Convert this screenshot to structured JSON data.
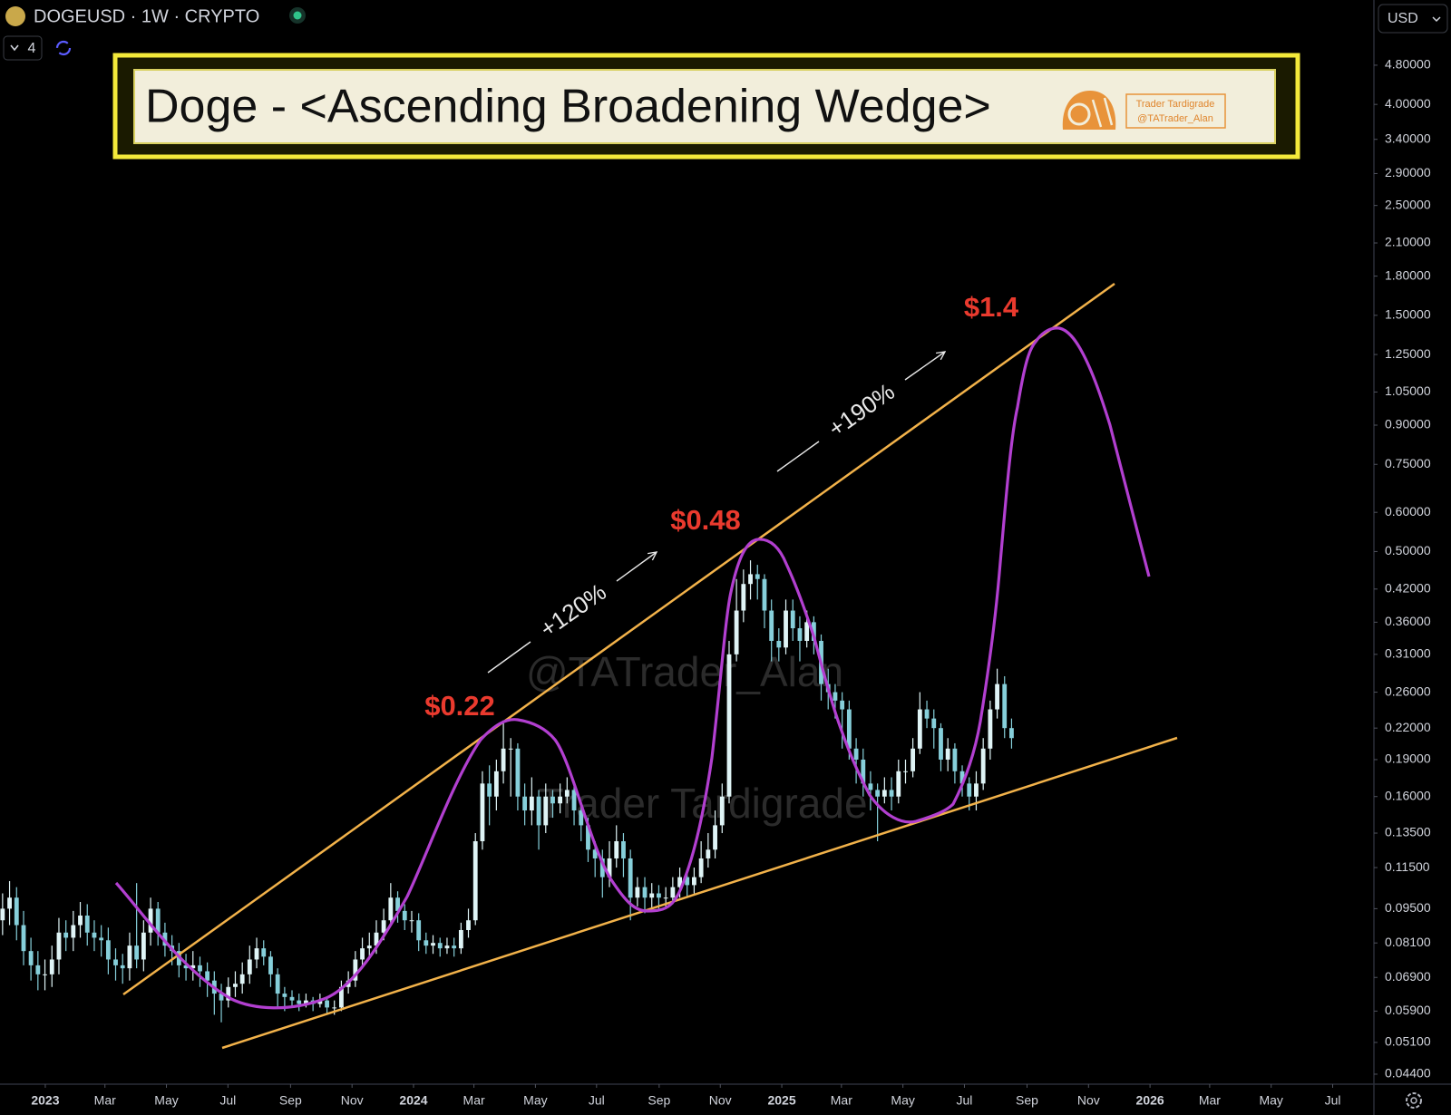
{
  "header": {
    "symbol": "DOGEUSD · 1W · CRYPTO",
    "indicators": "4",
    "currency": "USD"
  },
  "chart_data": {
    "type": "candlestick",
    "title": "Doge - <Ascending Broadening Wedge>",
    "x": [
      2022.884,
      2022.903,
      2022.922,
      2022.941,
      2022.961,
      2022.98,
      2022.999,
      2023.018,
      2023.037,
      2023.056,
      2023.076,
      2023.095,
      2023.114,
      2023.133,
      2023.152,
      2023.171,
      2023.191,
      2023.21,
      2023.229,
      2023.248,
      2023.267,
      2023.286,
      2023.306,
      2023.325,
      2023.344,
      2023.363,
      2023.382,
      2023.401,
      2023.42,
      2023.44,
      2023.459,
      2023.478,
      2023.497,
      2023.516,
      2023.535,
      2023.555,
      2023.574,
      2023.593,
      2023.612,
      2023.631,
      2023.65,
      2023.67,
      2023.689,
      2023.708,
      2023.727,
      2023.746,
      2023.765,
      2023.785,
      2023.804,
      2023.823,
      2023.842,
      2023.861,
      2023.88,
      2023.899,
      2023.919,
      2023.938,
      2023.957,
      2023.976,
      2023.995,
      2024.014,
      2024.034,
      2024.053,
      2024.072,
      2024.091,
      2024.11,
      2024.129,
      2024.149,
      2024.168,
      2024.187,
      2024.206,
      2024.225,
      2024.244,
      2024.264,
      2024.283,
      2024.302,
      2024.321,
      2024.34,
      2024.359,
      2024.378,
      2024.398,
      2024.417,
      2024.436,
      2024.455,
      2024.474,
      2024.493,
      2024.513,
      2024.532,
      2024.551,
      2024.57,
      2024.589,
      2024.608,
      2024.628,
      2024.647,
      2024.666,
      2024.685,
      2024.704,
      2024.723,
      2024.743,
      2024.762,
      2024.781,
      2024.8,
      2024.819,
      2024.838,
      2024.857,
      2024.877,
      2024.896,
      2024.915,
      2024.934,
      2024.953,
      2024.972,
      2024.992,
      2025.011,
      2025.03,
      2025.049,
      2025.068,
      2025.087,
      2025.107,
      2025.126,
      2025.145,
      2025.164,
      2025.183,
      2025.202,
      2025.221,
      2025.241,
      2025.26,
      2025.279,
      2025.298,
      2025.317,
      2025.336,
      2025.356,
      2025.375,
      2025.394,
      2025.413,
      2025.432,
      2025.451,
      2025.47,
      2025.49,
      2025.509,
      2025.528,
      2025.547,
      2025.566,
      2025.585,
      2025.605,
      2025.624
    ],
    "open": [
      0.09,
      0.095,
      0.1,
      0.088,
      0.078,
      0.073,
      0.07,
      0.07,
      0.075,
      0.085,
      0.083,
      0.088,
      0.092,
      0.085,
      0.083,
      0.082,
      0.075,
      0.073,
      0.072,
      0.08,
      0.075,
      0.085,
      0.095,
      0.085,
      0.08,
      0.078,
      0.073,
      0.072,
      0.073,
      0.071,
      0.068,
      0.064,
      0.062,
      0.066,
      0.067,
      0.07,
      0.075,
      0.079,
      0.076,
      0.07,
      0.064,
      0.063,
      0.062,
      0.061,
      0.062,
      0.061,
      0.062,
      0.06,
      0.06,
      0.066,
      0.068,
      0.075,
      0.079,
      0.08,
      0.085,
      0.09,
      0.1,
      0.094,
      0.09,
      0.09,
      0.082,
      0.08,
      0.081,
      0.079,
      0.08,
      0.079,
      0.086,
      0.09,
      0.13,
      0.17,
      0.16,
      0.18,
      0.2,
      0.2,
      0.16,
      0.15,
      0.16,
      0.14,
      0.16,
      0.155,
      0.16,
      0.165,
      0.15,
      0.14,
      0.125,
      0.12,
      0.11,
      0.12,
      0.13,
      0.12,
      0.1,
      0.105,
      0.1,
      0.102,
      0.1,
      0.1,
      0.105,
      0.11,
      0.106,
      0.11,
      0.12,
      0.125,
      0.14,
      0.16,
      0.31,
      0.38,
      0.43,
      0.45,
      0.44,
      0.38,
      0.33,
      0.32,
      0.38,
      0.35,
      0.33,
      0.36,
      0.33,
      0.27,
      0.26,
      0.25,
      0.24,
      0.2,
      0.19,
      0.17,
      0.165,
      0.16,
      0.165,
      0.16,
      0.18,
      0.18,
      0.2,
      0.24,
      0.23,
      0.22,
      0.19,
      0.2,
      0.18,
      0.17,
      0.16,
      0.17,
      0.2,
      0.24,
      0.27,
      0.22
    ],
    "high": [
      0.102,
      0.108,
      0.105,
      0.094,
      0.083,
      0.078,
      0.075,
      0.08,
      0.091,
      0.09,
      0.094,
      0.098,
      0.097,
      0.09,
      0.088,
      0.087,
      0.079,
      0.077,
      0.085,
      0.107,
      0.09,
      0.1,
      0.098,
      0.089,
      0.084,
      0.081,
      0.077,
      0.078,
      0.076,
      0.074,
      0.071,
      0.067,
      0.069,
      0.071,
      0.074,
      0.08,
      0.083,
      0.082,
      0.078,
      0.072,
      0.066,
      0.065,
      0.064,
      0.064,
      0.063,
      0.064,
      0.063,
      0.062,
      0.068,
      0.071,
      0.078,
      0.083,
      0.085,
      0.09,
      0.095,
      0.107,
      0.103,
      0.097,
      0.094,
      0.093,
      0.085,
      0.084,
      0.083,
      0.083,
      0.083,
      0.089,
      0.095,
      0.135,
      0.18,
      0.185,
      0.19,
      0.228,
      0.21,
      0.205,
      0.17,
      0.175,
      0.165,
      0.17,
      0.165,
      0.17,
      0.175,
      0.17,
      0.155,
      0.145,
      0.13,
      0.125,
      0.13,
      0.14,
      0.135,
      0.125,
      0.11,
      0.11,
      0.107,
      0.106,
      0.105,
      0.11,
      0.115,
      0.113,
      0.115,
      0.13,
      0.135,
      0.15,
      0.17,
      0.33,
      0.44,
      0.46,
      0.48,
      0.47,
      0.45,
      0.4,
      0.35,
      0.4,
      0.4,
      0.37,
      0.38,
      0.37,
      0.34,
      0.29,
      0.27,
      0.26,
      0.25,
      0.21,
      0.2,
      0.18,
      0.17,
      0.175,
      0.175,
      0.19,
      0.19,
      0.21,
      0.26,
      0.25,
      0.24,
      0.225,
      0.21,
      0.205,
      0.185,
      0.175,
      0.18,
      0.21,
      0.25,
      0.29,
      0.28,
      0.23
    ],
    "low": [
      0.084,
      0.088,
      0.082,
      0.073,
      0.068,
      0.065,
      0.065,
      0.066,
      0.07,
      0.078,
      0.078,
      0.083,
      0.08,
      0.078,
      0.076,
      0.07,
      0.068,
      0.067,
      0.068,
      0.072,
      0.071,
      0.08,
      0.08,
      0.076,
      0.073,
      0.069,
      0.068,
      0.068,
      0.066,
      0.063,
      0.058,
      0.056,
      0.06,
      0.063,
      0.064,
      0.067,
      0.072,
      0.073,
      0.066,
      0.06,
      0.059,
      0.06,
      0.059,
      0.06,
      0.059,
      0.06,
      0.058,
      0.058,
      0.059,
      0.064,
      0.066,
      0.072,
      0.075,
      0.077,
      0.082,
      0.088,
      0.089,
      0.086,
      0.085,
      0.078,
      0.077,
      0.077,
      0.076,
      0.077,
      0.076,
      0.077,
      0.083,
      0.088,
      0.125,
      0.14,
      0.15,
      0.17,
      0.16,
      0.15,
      0.14,
      0.14,
      0.125,
      0.135,
      0.145,
      0.148,
      0.155,
      0.14,
      0.13,
      0.118,
      0.11,
      0.1,
      0.105,
      0.115,
      0.11,
      0.09,
      0.096,
      0.093,
      0.095,
      0.095,
      0.095,
      0.097,
      0.1,
      0.1,
      0.102,
      0.107,
      0.115,
      0.12,
      0.135,
      0.155,
      0.3,
      0.36,
      0.4,
      0.4,
      0.35,
      0.3,
      0.3,
      0.31,
      0.33,
      0.3,
      0.32,
      0.31,
      0.25,
      0.24,
      0.23,
      0.2,
      0.19,
      0.17,
      0.16,
      0.15,
      0.13,
      0.155,
      0.15,
      0.155,
      0.17,
      0.175,
      0.195,
      0.22,
      0.2,
      0.18,
      0.18,
      0.17,
      0.16,
      0.15,
      0.15,
      0.165,
      0.19,
      0.23,
      0.21,
      0.2
    ],
    "close": [
      0.095,
      0.1,
      0.088,
      0.078,
      0.073,
      0.07,
      0.07,
      0.075,
      0.085,
      0.083,
      0.088,
      0.092,
      0.085,
      0.083,
      0.082,
      0.075,
      0.073,
      0.072,
      0.08,
      0.075,
      0.085,
      0.095,
      0.085,
      0.08,
      0.078,
      0.073,
      0.072,
      0.073,
      0.071,
      0.068,
      0.064,
      0.062,
      0.066,
      0.067,
      0.07,
      0.075,
      0.079,
      0.076,
      0.07,
      0.064,
      0.063,
      0.062,
      0.061,
      0.062,
      0.061,
      0.062,
      0.06,
      0.06,
      0.066,
      0.068,
      0.075,
      0.079,
      0.08,
      0.085,
      0.09,
      0.1,
      0.094,
      0.09,
      0.09,
      0.082,
      0.08,
      0.081,
      0.079,
      0.08,
      0.079,
      0.086,
      0.09,
      0.13,
      0.17,
      0.16,
      0.18,
      0.2,
      0.2,
      0.16,
      0.15,
      0.16,
      0.14,
      0.16,
      0.155,
      0.16,
      0.165,
      0.15,
      0.14,
      0.125,
      0.12,
      0.11,
      0.12,
      0.13,
      0.12,
      0.1,
      0.105,
      0.1,
      0.102,
      0.1,
      0.1,
      0.105,
      0.11,
      0.106,
      0.11,
      0.12,
      0.125,
      0.14,
      0.16,
      0.31,
      0.38,
      0.43,
      0.45,
      0.44,
      0.38,
      0.33,
      0.32,
      0.38,
      0.35,
      0.33,
      0.36,
      0.33,
      0.27,
      0.26,
      0.25,
      0.24,
      0.2,
      0.19,
      0.17,
      0.165,
      0.16,
      0.165,
      0.16,
      0.18,
      0.18,
      0.2,
      0.24,
      0.23,
      0.22,
      0.19,
      0.2,
      0.18,
      0.17,
      0.16,
      0.17,
      0.2,
      0.24,
      0.27,
      0.22,
      0.21
    ],
    "up_color": "#dff4f6",
    "down_color": "#86cfda",
    "xlim": [
      2022.877,
      2026.608
    ],
    "ylim": [
      0.042,
      6.5
    ],
    "log_y": true,
    "grid": false,
    "xticks": [
      2023,
      {
        "value": 2023.162,
        "label": "Mar"
      },
      {
        "value": 2023.329,
        "label": "May"
      },
      {
        "value": 2023.496,
        "label": "Jul"
      },
      {
        "value": 2023.666,
        "label": "Sep"
      },
      {
        "value": 2023.833,
        "label": "Nov"
      },
      2024,
      {
        "value": 2024.164,
        "label": "Mar"
      },
      {
        "value": 2024.331,
        "label": "May"
      },
      {
        "value": 2024.497,
        "label": "Jul"
      },
      {
        "value": 2024.667,
        "label": "Sep"
      },
      {
        "value": 2024.833,
        "label": "Nov"
      },
      2025,
      {
        "value": 2025.162,
        "label": "Mar"
      },
      {
        "value": 2025.329,
        "label": "May"
      },
      {
        "value": 2025.496,
        "label": "Jul"
      },
      {
        "value": 2025.666,
        "label": "Sep"
      },
      {
        "value": 2025.833,
        "label": "Nov"
      },
      2026,
      {
        "value": 2026.162,
        "label": "Mar"
      },
      {
        "value": 2026.329,
        "label": "May"
      },
      {
        "value": 2026.496,
        "label": "Jul"
      }
    ],
    "yticks": [
      {
        "value": 4.8,
        "label": "4.80000"
      },
      {
        "value": 4.0,
        "label": "4.00000"
      },
      {
        "value": 3.4,
        "label": "3.40000"
      },
      {
        "value": 2.9,
        "label": "2.90000"
      },
      {
        "value": 2.5,
        "label": "2.50000"
      },
      {
        "value": 2.1,
        "label": "2.10000"
      },
      {
        "value": 1.8,
        "label": "1.80000"
      },
      {
        "value": 1.5,
        "label": "1.50000"
      },
      {
        "value": 1.25,
        "label": "1.25000"
      },
      {
        "value": 1.05,
        "label": "1.05000"
      },
      {
        "value": 0.9,
        "label": "0.90000"
      },
      {
        "value": 0.75,
        "label": "0.75000"
      },
      {
        "value": 0.6,
        "label": "0.60000"
      },
      {
        "value": 0.5,
        "label": "0.50000"
      },
      {
        "value": 0.42,
        "label": "0.42000"
      },
      {
        "value": 0.36,
        "label": "0.36000"
      },
      {
        "value": 0.31,
        "label": "0.31000"
      },
      {
        "value": 0.26,
        "label": "0.26000"
      },
      {
        "value": 0.22,
        "label": "0.22000"
      },
      {
        "value": 0.19,
        "label": "0.19000"
      },
      {
        "value": 0.16,
        "label": "0.16000"
      },
      {
        "value": 0.135,
        "label": "0.13500"
      },
      {
        "value": 0.115,
        "label": "0.11500"
      },
      {
        "value": 0.095,
        "label": "0.09500"
      },
      {
        "value": 0.081,
        "label": "0.08100"
      },
      {
        "value": 0.069,
        "label": "0.06900"
      },
      {
        "value": 0.059,
        "label": "0.05900"
      },
      {
        "value": 0.051,
        "label": "0.05100"
      },
      {
        "value": 0.044,
        "label": "0.04400"
      }
    ],
    "annotations": [
      "$0.22",
      "$0.48",
      "$1.4",
      "+120%",
      "+190%"
    ]
  },
  "branding": {
    "name": "Trader Tardigrade",
    "handle": "@TATrader_Alan"
  },
  "watermarks": [
    "@TATrader_Alan",
    "Trader Tardigrade"
  ]
}
